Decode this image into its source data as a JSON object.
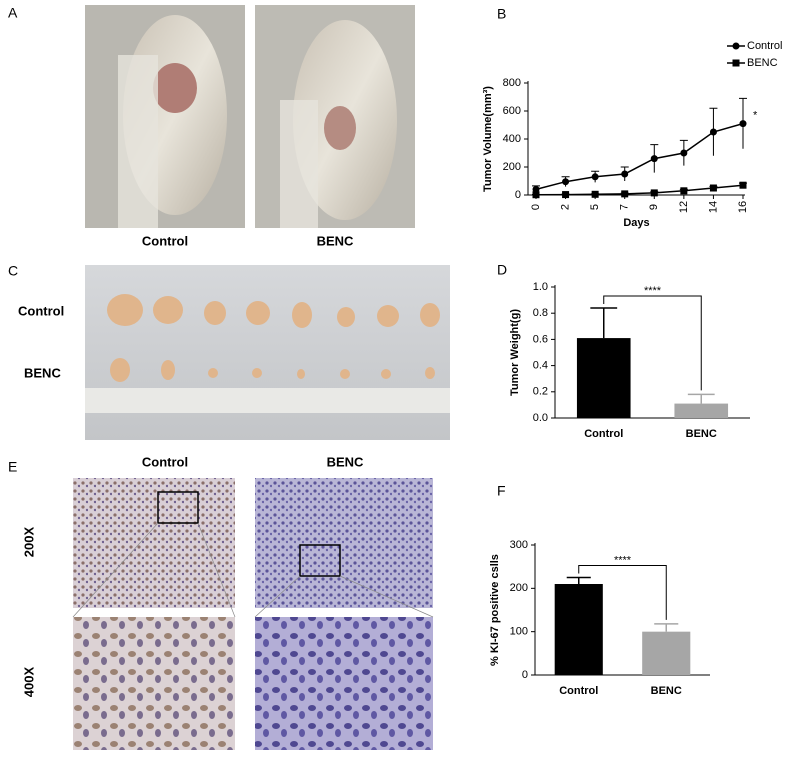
{
  "panels": {
    "A": {
      "label": "A",
      "captions": [
        "Control",
        "BENC"
      ]
    },
    "C": {
      "label": "C",
      "rows": [
        "Control",
        "BENC"
      ]
    },
    "E": {
      "label": "E",
      "columns": [
        "Control",
        "BENC"
      ],
      "rows": [
        "200X",
        "400X"
      ]
    }
  },
  "chart_data": [
    {
      "type": "line",
      "panel": "B",
      "x_label": "Days",
      "y_label": "Tumor Volume(mm³)",
      "categories": [
        "0",
        "2",
        "5",
        "7",
        "9",
        "12",
        "14",
        "16"
      ],
      "series": [
        {
          "name": "Control",
          "color": "#000000",
          "marker": "circle",
          "values": [
            40,
            95,
            130,
            150,
            260,
            300,
            450,
            510
          ],
          "errors": [
            25,
            35,
            40,
            50,
            100,
            90,
            170,
            180
          ]
        },
        {
          "name": "BENC",
          "color": "#000000",
          "marker": "square",
          "values": [
            2,
            3,
            5,
            8,
            15,
            30,
            50,
            70
          ],
          "errors": [
            2,
            3,
            4,
            5,
            8,
            10,
            12,
            15
          ]
        }
      ],
      "annotation": "*",
      "legend": "top-right",
      "ylim": [
        0,
        800
      ],
      "yticks": [
        0,
        200,
        400,
        600,
        800
      ]
    },
    {
      "type": "bar",
      "panel": "D",
      "y_label": "Tumor Weight(g)",
      "categories": [
        "Control",
        "BENC"
      ],
      "values": [
        0.61,
        0.11
      ],
      "errors": [
        0.23,
        0.07
      ],
      "colors": [
        "#000000",
        "#a6a6a6"
      ],
      "annotation": "****",
      "ylim": [
        0,
        1.0
      ],
      "yticks": [
        {
          "value": 0,
          "label": "0.0"
        },
        0.2,
        0.4,
        0.6,
        0.8,
        {
          "value": 1,
          "label": "1.0"
        }
      ]
    },
    {
      "type": "bar",
      "panel": "F",
      "y_label": "% KI-67 positive cslls",
      "categories": [
        "Control",
        "BENC"
      ],
      "values": [
        210,
        100
      ],
      "errors": [
        15,
        18
      ],
      "colors": [
        "#000000",
        "#a6a6a6"
      ],
      "annotation": "****",
      "ylim": [
        0,
        300
      ],
      "yticks": [
        0,
        100,
        200,
        300
      ]
    }
  ]
}
